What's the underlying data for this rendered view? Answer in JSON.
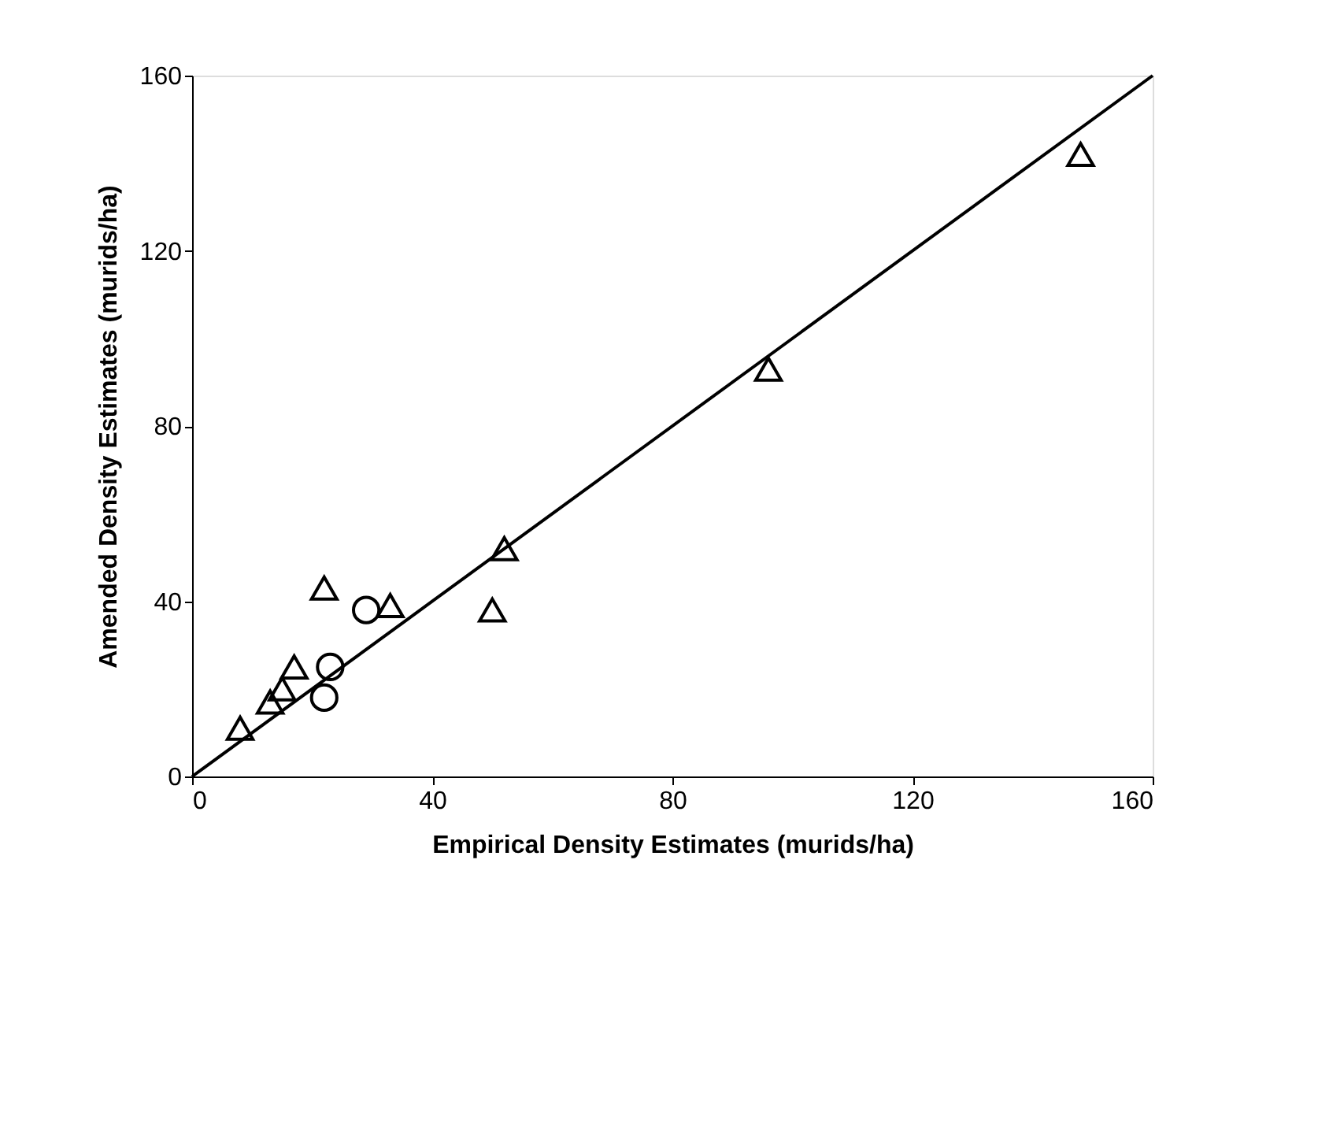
{
  "chart_data": {
    "type": "scatter",
    "xlabel": "Empirical Density Estimates (murids/ha)",
    "ylabel": "Amended Density Estimates (murids/ha)",
    "xlim": [
      0,
      160
    ],
    "ylim": [
      0,
      160
    ],
    "xticks": [
      0,
      40,
      80,
      120,
      160
    ],
    "yticks": [
      0,
      40,
      80,
      120,
      160
    ],
    "grid": false,
    "series": [
      {
        "marker": "triangle",
        "color": "#000000",
        "x": [
          8,
          13,
          15,
          17,
          22,
          33,
          50,
          52,
          96,
          148
        ],
        "values": [
          11,
          17,
          20,
          25,
          43,
          39,
          38,
          52,
          93,
          142
        ]
      },
      {
        "marker": "circle",
        "color": "#000000",
        "x": [
          22,
          23,
          29
        ],
        "values": [
          18,
          25,
          38
        ]
      },
      {
        "type": "line",
        "marker": "none",
        "line_style": "solid",
        "color": "#000000",
        "x": [
          0,
          160
        ],
        "values": [
          0,
          160
        ]
      }
    ]
  }
}
